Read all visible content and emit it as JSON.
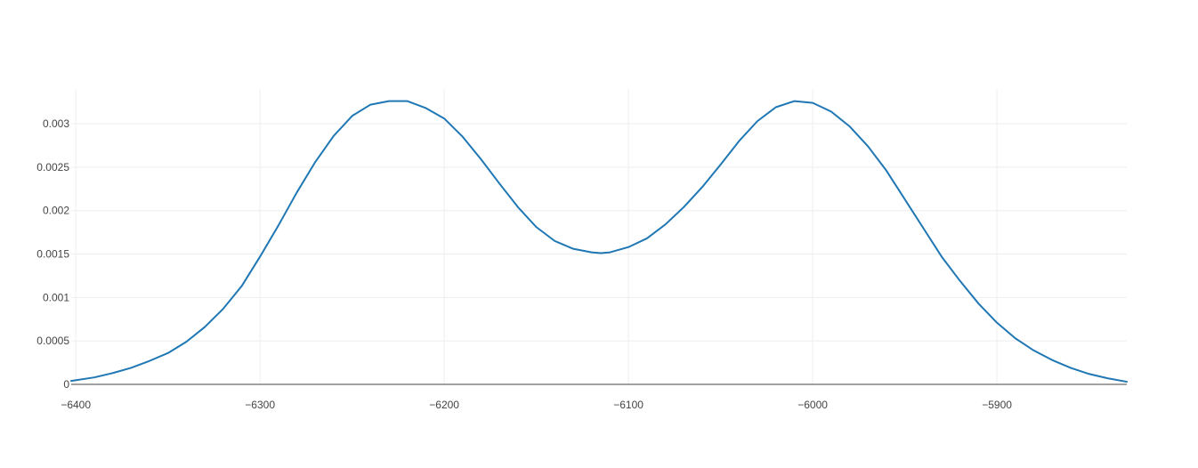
{
  "chart_data": {
    "type": "line",
    "title": "",
    "xlabel": "",
    "ylabel": "",
    "xlim": [
      -6402.5,
      -5829.5
    ],
    "ylim": [
      0,
      0.0034
    ],
    "x_ticks": [
      {
        "value": -6400,
        "label": "−6400"
      },
      {
        "value": -6300,
        "label": "−6300"
      },
      {
        "value": -6200,
        "label": "−6200"
      },
      {
        "value": -6100,
        "label": "−6100"
      },
      {
        "value": -6000,
        "label": "−6000"
      },
      {
        "value": -5900,
        "label": "−5900"
      }
    ],
    "y_ticks": [
      {
        "value": 0,
        "label": "0"
      },
      {
        "value": 0.0005,
        "label": "0.0005"
      },
      {
        "value": 0.001,
        "label": "0.001"
      },
      {
        "value": 0.0015,
        "label": "0.0015"
      },
      {
        "value": 0.002,
        "label": "0.002"
      },
      {
        "value": 0.0025,
        "label": "0.0025"
      },
      {
        "value": 0.003,
        "label": "0.003"
      }
    ],
    "grid": true,
    "line_color": "#1f77b4",
    "series": [
      {
        "x": [
          -6402.5,
          -6390,
          -6380,
          -6370,
          -6360,
          -6350,
          -6340,
          -6330,
          -6320,
          -6310,
          -6300,
          -6290,
          -6280,
          -6270,
          -6260,
          -6250,
          -6240,
          -6230,
          -6220,
          -6210,
          -6200,
          -6190,
          -6180,
          -6170,
          -6160,
          -6150,
          -6140,
          -6130,
          -6120,
          -6115,
          -6110,
          -6100,
          -6090,
          -6080,
          -6070,
          -6060,
          -6050,
          -6040,
          -6030,
          -6020,
          -6010,
          -6000,
          -5990,
          -5980,
          -5970,
          -5960,
          -5950,
          -5940,
          -5930,
          -5920,
          -5910,
          -5900,
          -5890,
          -5880,
          -5870,
          -5860,
          -5850,
          -5840,
          -5829.5
        ],
        "y": [
          4e-05,
          8e-05,
          0.00013,
          0.00019,
          0.00027,
          0.00036,
          0.00049,
          0.00066,
          0.00087,
          0.00113,
          0.00147,
          0.00183,
          0.00221,
          0.00256,
          0.00286,
          0.00309,
          0.00322,
          0.00326,
          0.00326,
          0.00318,
          0.00306,
          0.00285,
          0.00259,
          0.00231,
          0.00204,
          0.00181,
          0.00165,
          0.00156,
          0.00152,
          0.00151,
          0.00152,
          0.00158,
          0.00168,
          0.00184,
          0.00204,
          0.00227,
          0.00253,
          0.0028,
          0.00303,
          0.00319,
          0.00326,
          0.00324,
          0.00314,
          0.00297,
          0.00274,
          0.00246,
          0.00213,
          0.0018,
          0.00147,
          0.00119,
          0.00093,
          0.00071,
          0.00053,
          0.00039,
          0.00028,
          0.00019,
          0.00012,
          7e-05,
          3e-05
        ]
      }
    ]
  }
}
